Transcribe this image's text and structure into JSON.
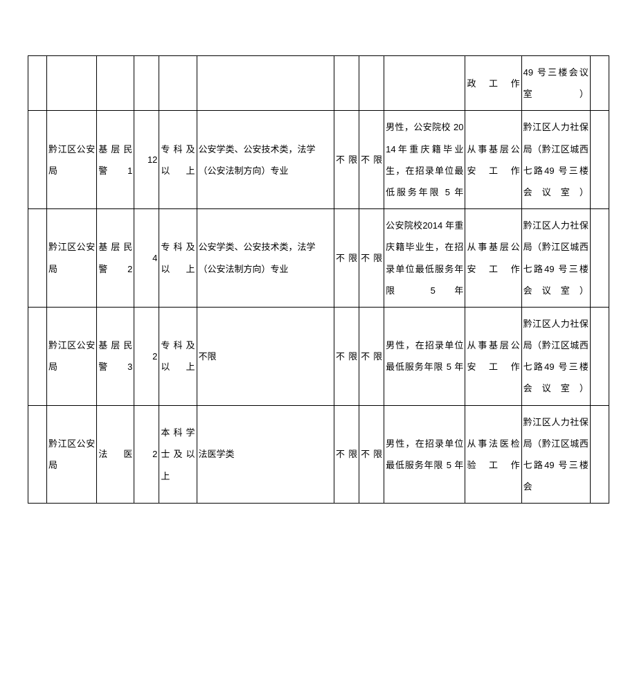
{
  "table": {
    "rows": [
      {
        "c0": "",
        "c1": "",
        "c2": "",
        "c3": "",
        "c4": "",
        "c5": "",
        "c6": "",
        "c7": "",
        "c8": "",
        "c9": "政工作",
        "c10": "49 号三楼会议室）",
        "c11": ""
      },
      {
        "c0": "",
        "c1": "黔江区公安局",
        "c2": "基层民警1",
        "c3": "12",
        "c4": "专科及以上",
        "c5": "公安学类、公安技术类，法学（公安法制方向）专业",
        "c6": "不限",
        "c7": "不限",
        "c8": "男性，公安院校 2014年重庆籍毕业生，在招录单位最低服务年限 5 年",
        "c9": "从事基层公安工作",
        "c10": "黔江区人力社保局（黔江区城西七路49 号三楼会议室）",
        "c11": ""
      },
      {
        "c0": "",
        "c1": "黔江区公安局",
        "c2": "基层民警2",
        "c3": "4",
        "c4": "专科及以上",
        "c5": "公安学类、公安技术类，法学（公安法制方向）专业",
        "c6": "不限",
        "c7": "不限",
        "c8": "公安院校2014 年重庆籍毕业生，在招录单位最低服务年限 5 年",
        "c9": "从事基层公安工作",
        "c10": "黔江区人力社保局（黔江区城西七路49 号三楼会议室）",
        "c11": ""
      },
      {
        "c0": "",
        "c1": "黔江区公安局",
        "c2": "基层民警3",
        "c3": "2",
        "c4": "专科及以上",
        "c5": "不限",
        "c6": "不限",
        "c7": "不限",
        "c8": "男性，在招录单位最低服务年限 5 年",
        "c9": "从事基层公安工作",
        "c10": "黔江区人力社保局（黔江区城西七路49 号三楼会议室）",
        "c11": ""
      },
      {
        "c0": "",
        "c1": "黔江区公安局",
        "c2": "法医",
        "c3": "2",
        "c4": "本科学士及以上",
        "c5": "法医学类",
        "c6": "不限",
        "c7": "不限",
        "c8": "男性，在招录单位最低服务年限 5 年",
        "c9": "从事法医检验工作",
        "c10": "黔江区人力社保局（黔江区城西七路49 号三楼会",
        "c11": ""
      }
    ]
  },
  "colors": {
    "border": "#000000",
    "background": "#ffffff",
    "text": "#000000"
  },
  "typography": {
    "font_family": "Microsoft YaHei",
    "font_size_pt": 10,
    "line_height": 2.4
  },
  "layout": {
    "col_widths_percent": [
      3,
      8,
      6,
      4,
      6,
      22,
      4,
      4,
      13,
      9,
      11,
      3
    ]
  }
}
